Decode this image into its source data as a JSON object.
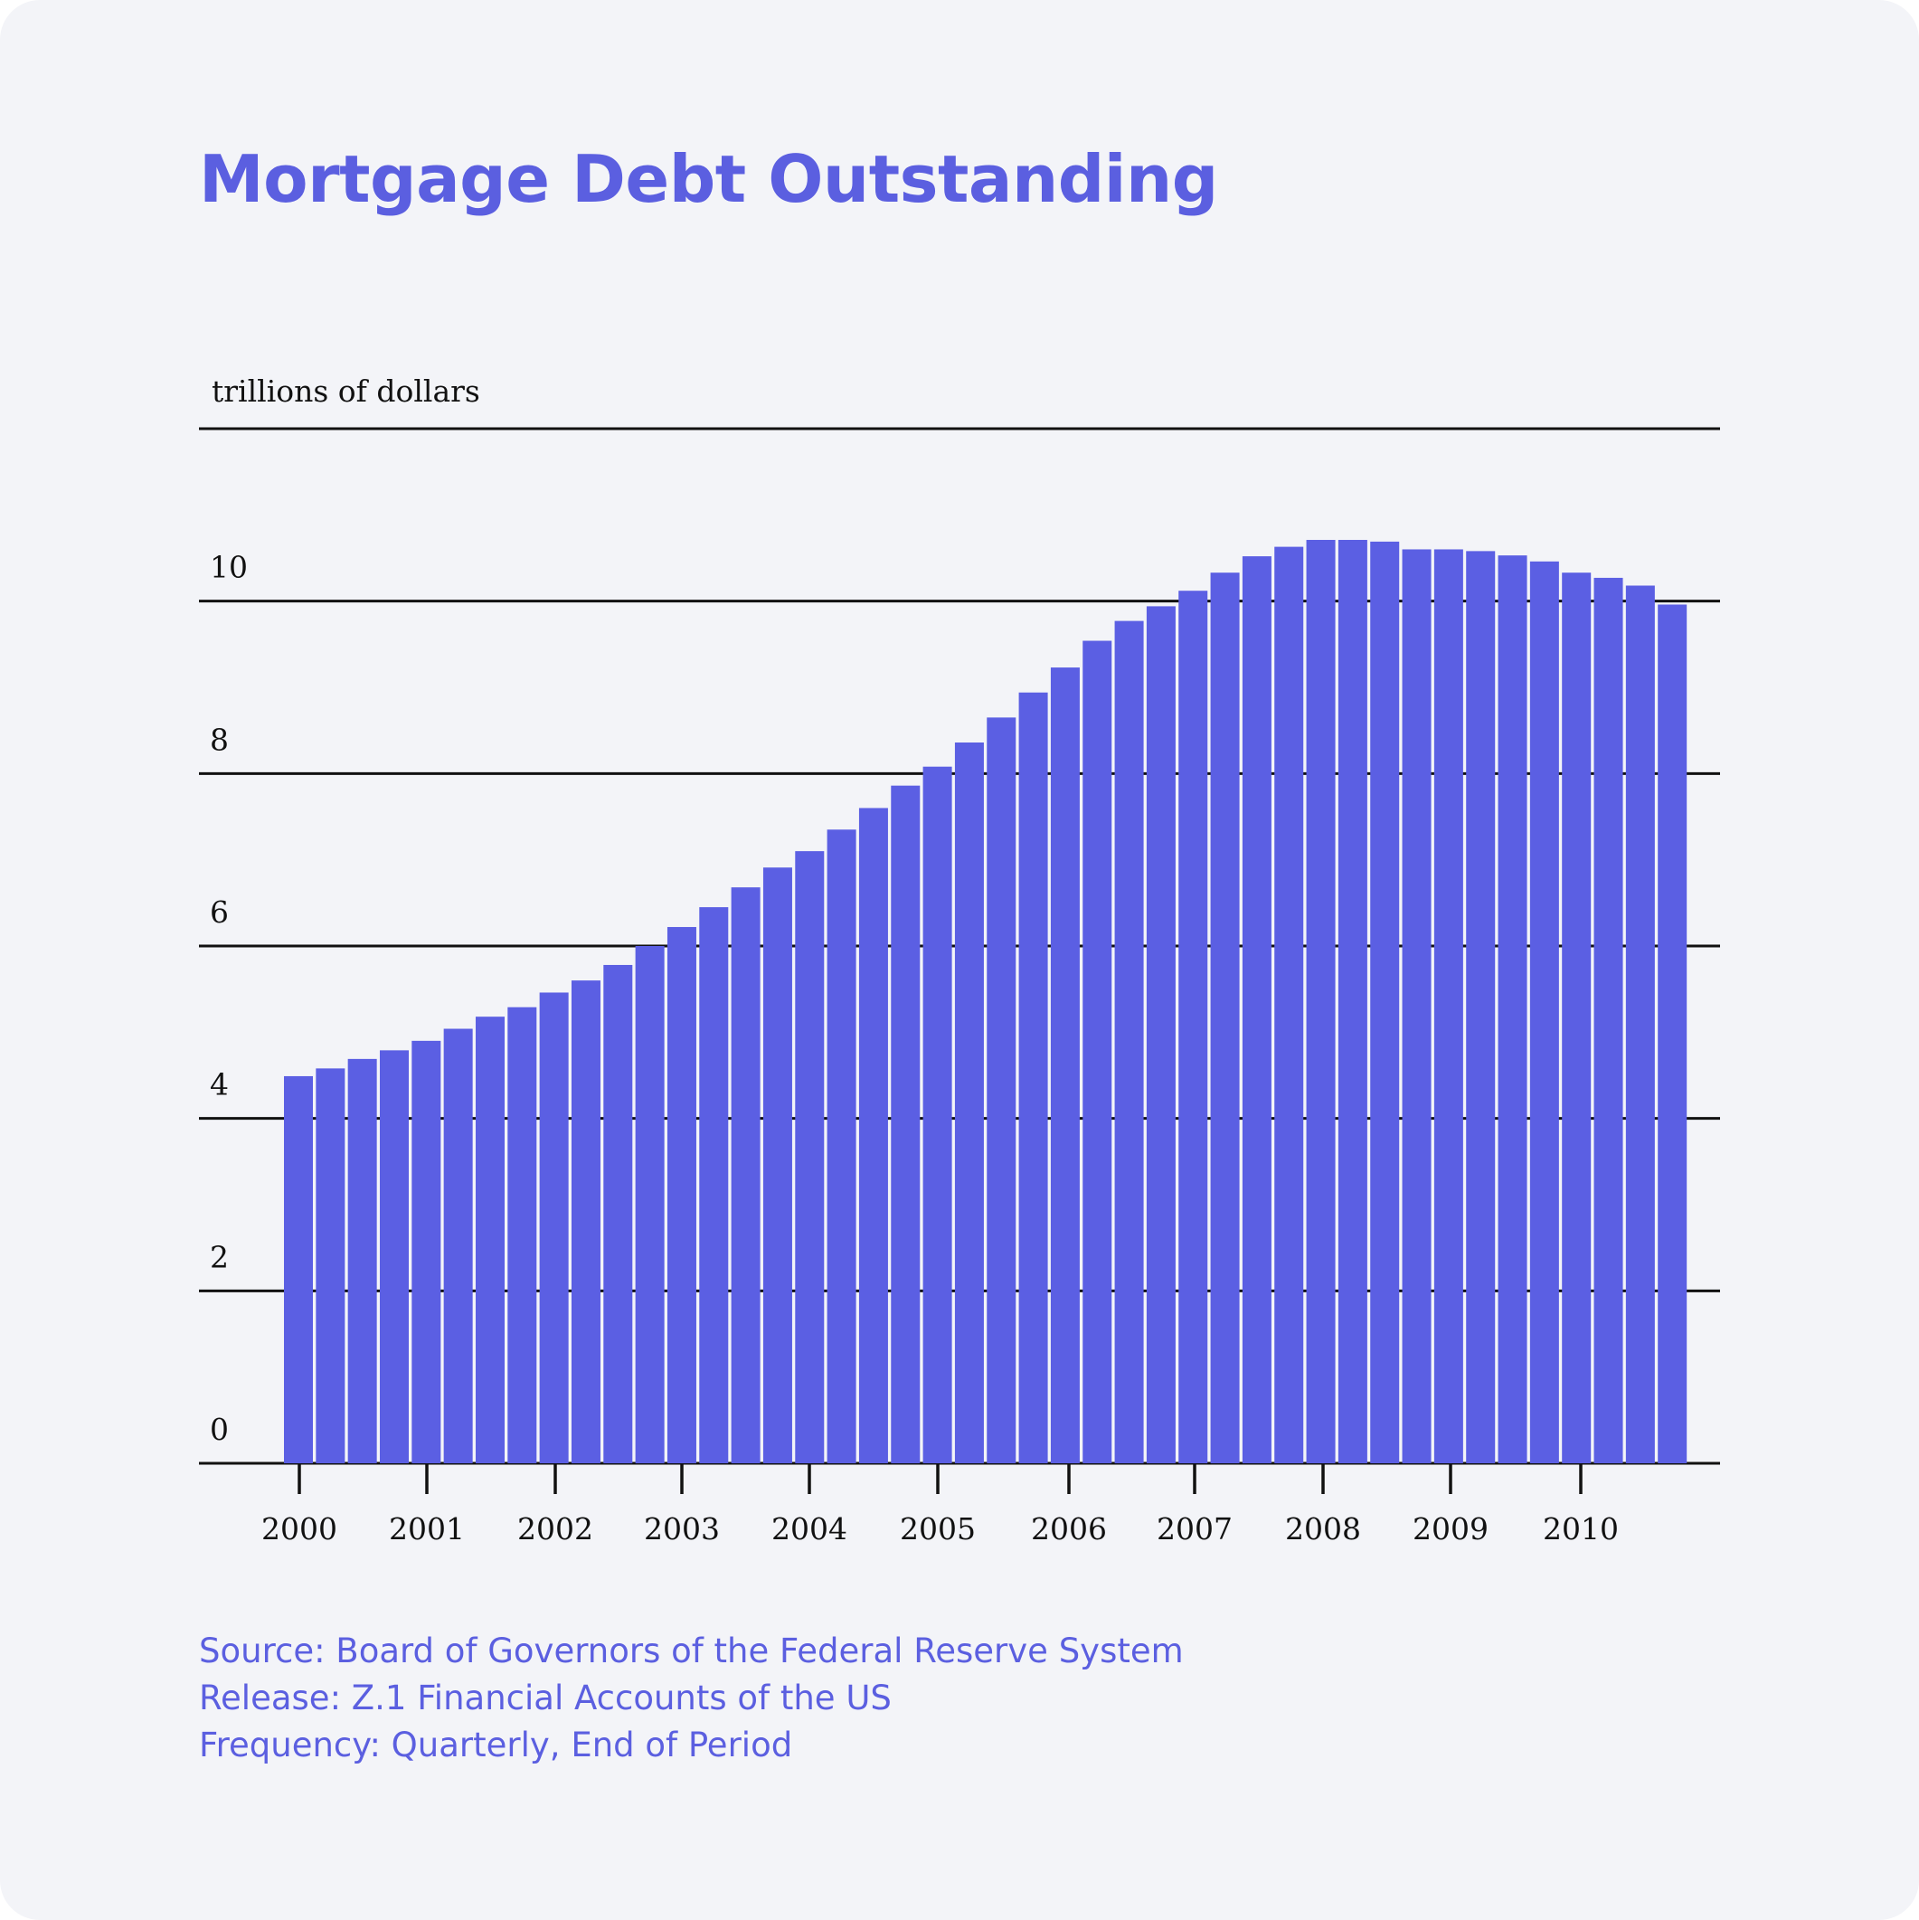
{
  "title": "Mortgage Debt Outstanding",
  "colors": {
    "background": "#f3f4f8",
    "accent": "#5b5fe0",
    "bar": "#5b5fe3",
    "axis": "#111111"
  },
  "notes": {
    "source": "Source: Board of Governors of the Federal Reserve System",
    "release": "Release: Z.1 Financial Accounts of the US",
    "frequency": "Frequency: Quarterly, End of Period"
  },
  "chart_data": {
    "type": "bar",
    "title": "Mortgage Debt Outstanding",
    "ylabel": "trillions of dollars",
    "xlabel": "",
    "ylim": [
      0,
      12
    ],
    "y_ticks": [
      "0",
      "2",
      "4",
      "6",
      "8",
      "10"
    ],
    "x_tick_labels": [
      "2000",
      "2001",
      "2002",
      "2003",
      "2004",
      "2005",
      "2006",
      "2007",
      "2008",
      "2009",
      "2010"
    ],
    "grid": true,
    "legend": "none",
    "series": [
      {
        "values": [
          4.49,
          4.58,
          4.69,
          4.79,
          4.9,
          5.04,
          5.18,
          5.29,
          5.46,
          5.6,
          5.78,
          6.0,
          6.22,
          6.45,
          6.68,
          6.91,
          7.1,
          7.35,
          7.6,
          7.86,
          8.08,
          8.36,
          8.65,
          8.94,
          9.23,
          9.54,
          9.77,
          9.94,
          10.12,
          10.33,
          10.52,
          10.63,
          10.71,
          10.71,
          10.69,
          10.6,
          10.6,
          10.58,
          10.53,
          10.46,
          10.33,
          10.27,
          10.18,
          9.96
        ]
      }
    ]
  }
}
